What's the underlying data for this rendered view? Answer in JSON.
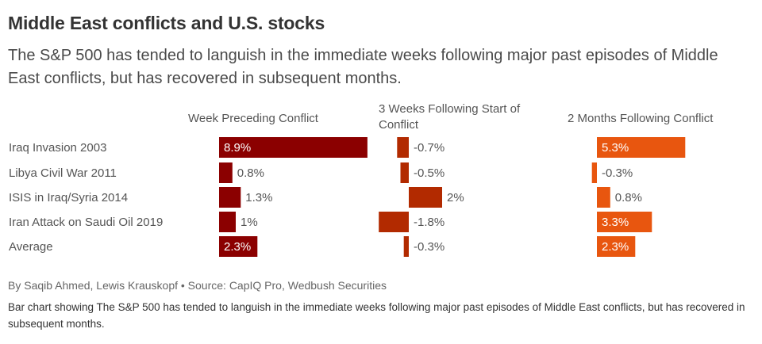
{
  "title": "Middle East conflicts and U.S. stocks",
  "subtitle": "The S&P 500 has tended to languish in the immediate weeks following major past episodes of Middle East conflicts, but has recovered in subsequent months.",
  "byline": "By Saqib Ahmed, Lewis Krauskopf • Source: CapIQ Pro, Wedbush Securities",
  "alt_text": "Bar chart showing The S&P 500 has tended to languish in the immediate weeks following major past episodes of Middle East conflicts, but has recovered in subsequent months.",
  "chart_data": {
    "type": "bar",
    "orientation": "horizontal",
    "categories": [
      "Iraq Invasion 2003",
      "Libya Civil War 2011",
      "ISIS in Iraq/Syria 2014",
      "Iran Attack on Saudi Oil 2019",
      "Average"
    ],
    "unit": "%",
    "series": [
      {
        "name": "Week Preceding Conflict",
        "color": "#8b0000",
        "values": [
          8.9,
          0.8,
          1.3,
          1.0,
          2.3
        ],
        "labels": [
          "8.9%",
          "0.8%",
          "1.3%",
          "1%",
          "2.3%"
        ]
      },
      {
        "name": "3 Weeks Following Start of Conflict",
        "color": "#b22a00",
        "values": [
          -0.7,
          -0.5,
          2.0,
          -1.8,
          -0.3
        ],
        "labels": [
          "-0.7%",
          "-0.5%",
          "2%",
          "-1.8%",
          "-0.3%"
        ]
      },
      {
        "name": "2 Months Following Conflict",
        "color": "#e8560f",
        "values": [
          5.3,
          -0.3,
          0.8,
          3.3,
          2.3
        ],
        "labels": [
          "5.3%",
          "-0.3%",
          "0.8%",
          "3.3%",
          "2.3%"
        ]
      }
    ]
  }
}
